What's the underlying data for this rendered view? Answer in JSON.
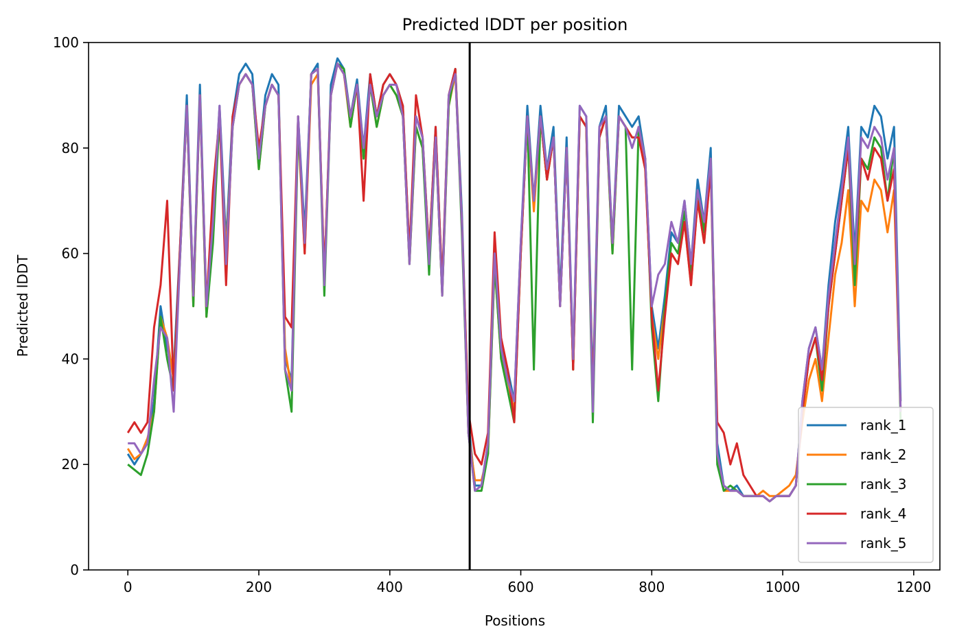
{
  "chart_data": {
    "type": "line",
    "title": "Predicted lDDT per position",
    "xlabel": "Positions",
    "ylabel": "Predicted lDDT",
    "xlim": [
      -60,
      1240
    ],
    "ylim": [
      0,
      100
    ],
    "xticks": [
      0,
      200,
      400,
      600,
      800,
      1000,
      1200
    ],
    "yticks": [
      0,
      20,
      40,
      60,
      80,
      100
    ],
    "xtick_labels": [
      "0",
      "200",
      "400",
      "600",
      "800",
      "1000",
      "1200"
    ],
    "ytick_labels": [
      "0",
      "20",
      "40",
      "60",
      "80",
      "100"
    ],
    "vertical_line_x": 522,
    "grid": false,
    "legend_position": "bottom-right",
    "x": [
      0,
      10,
      20,
      30,
      40,
      50,
      60,
      70,
      80,
      90,
      100,
      110,
      120,
      130,
      140,
      150,
      160,
      170,
      180,
      190,
      200,
      210,
      220,
      230,
      240,
      250,
      260,
      270,
      280,
      290,
      300,
      310,
      320,
      330,
      340,
      350,
      360,
      370,
      380,
      390,
      400,
      410,
      420,
      430,
      440,
      450,
      460,
      470,
      480,
      490,
      500,
      510,
      520,
      530,
      540,
      550,
      560,
      570,
      580,
      590,
      600,
      610,
      620,
      630,
      640,
      650,
      660,
      670,
      680,
      690,
      700,
      710,
      720,
      730,
      740,
      750,
      760,
      770,
      780,
      790,
      800,
      810,
      820,
      830,
      840,
      850,
      860,
      870,
      880,
      890,
      900,
      910,
      920,
      930,
      940,
      950,
      960,
      970,
      980,
      990,
      1000,
      1010,
      1020,
      1030,
      1040,
      1050,
      1060,
      1070,
      1080,
      1090,
      1100,
      1110,
      1120,
      1130,
      1140,
      1150,
      1160,
      1170,
      1180
    ],
    "series": [
      {
        "name": "rank_1",
        "color": "#1f77b4",
        "values": [
          22,
          20,
          22,
          24,
          32,
          50,
          42,
          38,
          62,
          90,
          52,
          92,
          50,
          66,
          88,
          62,
          86,
          94,
          96,
          94,
          78,
          90,
          94,
          92,
          40,
          36,
          86,
          64,
          94,
          96,
          54,
          92,
          97,
          95,
          86,
          93,
          80,
          94,
          86,
          92,
          94,
          92,
          88,
          60,
          86,
          82,
          60,
          84,
          54,
          90,
          95,
          68,
          28,
          16,
          16,
          24,
          62,
          42,
          38,
          32,
          62,
          88,
          70,
          88,
          76,
          84,
          52,
          82,
          40,
          88,
          86,
          34,
          84,
          88,
          62,
          88,
          86,
          84,
          86,
          78,
          50,
          42,
          52,
          64,
          62,
          70,
          58,
          74,
          66,
          80,
          24,
          16,
          15,
          16,
          14,
          14,
          14,
          14,
          13,
          14,
          14,
          14,
          16,
          32,
          42,
          46,
          38,
          54,
          66,
          74,
          84,
          60,
          84,
          82,
          88,
          86,
          78,
          84,
          32
        ]
      },
      {
        "name": "rank_2",
        "color": "#ff7f0e",
        "values": [
          23,
          21,
          22,
          25,
          30,
          48,
          44,
          36,
          60,
          88,
          50,
          90,
          48,
          64,
          86,
          60,
          84,
          92,
          94,
          92,
          76,
          88,
          92,
          90,
          42,
          34,
          84,
          60,
          92,
          94,
          56,
          90,
          96,
          94,
          84,
          92,
          78,
          92,
          84,
          90,
          92,
          90,
          86,
          58,
          84,
          80,
          58,
          82,
          52,
          88,
          94,
          66,
          26,
          17,
          17,
          22,
          58,
          40,
          36,
          30,
          60,
          86,
          68,
          86,
          74,
          82,
          50,
          80,
          38,
          86,
          84,
          32,
          82,
          86,
          60,
          86,
          84,
          82,
          82,
          76,
          48,
          40,
          50,
          60,
          58,
          66,
          54,
          70,
          62,
          76,
          22,
          15,
          15,
          15,
          14,
          14,
          14,
          15,
          14,
          14,
          15,
          16,
          18,
          28,
          36,
          40,
          32,
          44,
          56,
          62,
          72,
          50,
          70,
          68,
          74,
          72,
          64,
          72,
          30
        ]
      },
      {
        "name": "rank_3",
        "color": "#2ca02c",
        "values": [
          20,
          19,
          18,
          22,
          30,
          48,
          40,
          34,
          60,
          88,
          50,
          90,
          48,
          62,
          86,
          58,
          84,
          92,
          94,
          92,
          76,
          88,
          92,
          90,
          38,
          30,
          84,
          62,
          94,
          95,
          52,
          90,
          96,
          95,
          84,
          92,
          78,
          92,
          84,
          90,
          92,
          90,
          86,
          58,
          84,
          80,
          56,
          82,
          52,
          88,
          95,
          64,
          26,
          15,
          15,
          22,
          58,
          40,
          34,
          28,
          60,
          86,
          38,
          86,
          74,
          82,
          50,
          80,
          38,
          86,
          84,
          28,
          82,
          86,
          60,
          86,
          84,
          38,
          84,
          78,
          46,
          32,
          50,
          62,
          60,
          68,
          56,
          72,
          64,
          78,
          20,
          15,
          16,
          15,
          14,
          14,
          14,
          14,
          13,
          14,
          14,
          14,
          16,
          30,
          40,
          44,
          34,
          50,
          60,
          70,
          80,
          54,
          78,
          76,
          82,
          80,
          70,
          80,
          28
        ]
      },
      {
        "name": "rank_4",
        "color": "#d62728",
        "values": [
          26,
          28,
          26,
          28,
          46,
          54,
          70,
          34,
          62,
          88,
          52,
          90,
          50,
          72,
          86,
          54,
          86,
          92,
          94,
          92,
          80,
          88,
          92,
          90,
          48,
          46,
          86,
          60,
          94,
          95,
          56,
          90,
          96,
          94,
          86,
          92,
          70,
          94,
          86,
          92,
          94,
          92,
          88,
          60,
          90,
          82,
          60,
          84,
          54,
          90,
          95,
          66,
          30,
          22,
          20,
          26,
          64,
          44,
          38,
          28,
          60,
          86,
          70,
          86,
          74,
          82,
          50,
          80,
          38,
          86,
          84,
          32,
          82,
          86,
          62,
          86,
          84,
          82,
          82,
          76,
          48,
          34,
          48,
          60,
          58,
          66,
          54,
          70,
          62,
          76,
          28,
          26,
          20,
          24,
          18,
          16,
          14,
          14,
          13,
          14,
          14,
          14,
          16,
          30,
          40,
          44,
          36,
          50,
          60,
          70,
          80,
          58,
          78,
          74,
          80,
          78,
          70,
          76,
          30
        ]
      },
      {
        "name": "rank_5",
        "color": "#9467bd",
        "values": [
          24,
          24,
          22,
          24,
          36,
          46,
          44,
          30,
          60,
          88,
          52,
          90,
          50,
          66,
          88,
          58,
          84,
          92,
          94,
          92,
          78,
          88,
          92,
          90,
          38,
          34,
          86,
          62,
          94,
          95,
          54,
          90,
          96,
          94,
          86,
          92,
          80,
          92,
          86,
          90,
          92,
          92,
          86,
          58,
          86,
          82,
          58,
          82,
          52,
          90,
          94,
          66,
          26,
          15,
          16,
          24,
          60,
          42,
          36,
          32,
          62,
          86,
          70,
          86,
          76,
          82,
          50,
          80,
          40,
          88,
          86,
          30,
          84,
          86,
          62,
          86,
          84,
          80,
          84,
          78,
          50,
          56,
          58,
          66,
          62,
          70,
          58,
          72,
          66,
          78,
          22,
          16,
          15,
          15,
          14,
          14,
          14,
          14,
          13,
          14,
          14,
          14,
          16,
          32,
          42,
          46,
          38,
          52,
          62,
          72,
          82,
          58,
          82,
          80,
          84,
          82,
          74,
          80,
          30
        ]
      }
    ]
  }
}
